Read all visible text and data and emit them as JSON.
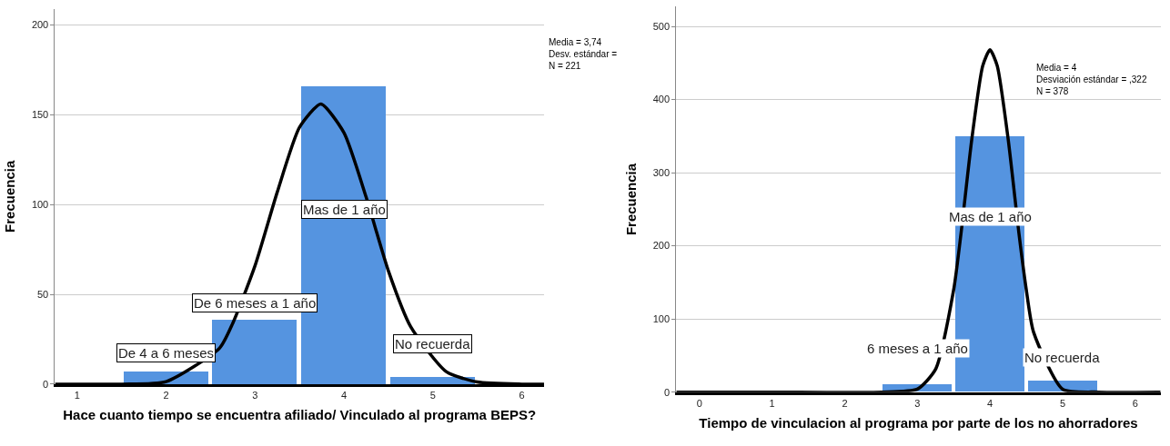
{
  "chart_data": [
    {
      "type": "histogram",
      "xlabel": "Hace cuanto tiempo se encuentra afiliado/ Vinculado al programa BEPS?",
      "ylabel": "Frecuencia",
      "bins": [
        1.5,
        2.5,
        3.5,
        4.5,
        5.5
      ],
      "values": [
        7,
        36,
        166,
        4
      ],
      "color": "#5594e0",
      "series": [
        {
          "type": "line",
          "color": "#000000",
          "x": [
            0.75,
            1,
            1.5,
            2,
            2.6,
            2.75,
            3,
            3.25,
            3.5,
            3.74,
            4,
            4.25,
            4.5,
            4.75,
            5.15,
            5.5,
            6,
            6.25
          ],
          "values": [
            0,
            0,
            0,
            1.4,
            20,
            34,
            66,
            107,
            143,
            156,
            140,
            104,
            63,
            32,
            7,
            1.2,
            0,
            0
          ]
        }
      ],
      "xlim": [
        0.75,
        6.25
      ],
      "xticks": [
        1,
        2,
        3,
        4,
        5,
        6
      ],
      "ylim": [
        0,
        209
      ],
      "yticks": [
        0,
        50,
        100,
        150,
        200
      ],
      "grid": "y",
      "annotations": [
        "Media = 3,74\nDesv. estándar =\nN = 221",
        "De 4 a 6 meses",
        "De 6 meses a 1 año",
        "Mas de 1 año",
        "No recuerda"
      ]
    },
    {
      "type": "histogram",
      "xlabel": "Tiempo de vinculacion al programa por parte de los no ahorradores",
      "ylabel": "Frecuencia",
      "bins": [
        2.5,
        3.5,
        4.5,
        5.5
      ],
      "values": [
        11,
        350,
        15
      ],
      "color": "#5594e0",
      "series": [
        {
          "type": "line",
          "color": "#000000",
          "x": [
            -0.32,
            1,
            2.5,
            3,
            3.25,
            3.5,
            3.6,
            3.75,
            3.9,
            4,
            4.1,
            4.25,
            4.4,
            4.5,
            4.6,
            5,
            5.5,
            6.35
          ],
          "values": [
            0,
            0,
            0,
            4,
            31,
            140,
            216,
            346,
            446,
            468,
            446,
            346,
            216,
            140,
            82,
            4,
            0,
            0
          ]
        }
      ],
      "xlim": [
        -0.32,
        6.35
      ],
      "xticks": [
        0,
        1,
        2,
        3,
        4,
        5,
        6
      ],
      "ylim": [
        0,
        527
      ],
      "yticks": [
        0,
        100,
        200,
        300,
        400,
        500
      ],
      "grid": "y",
      "annotations": [
        "Media = 4\nDesviación estándar = ,322\nN = 378",
        "6 meses a 1 año",
        "Mas de 1 año",
        "No recuerda"
      ]
    }
  ]
}
